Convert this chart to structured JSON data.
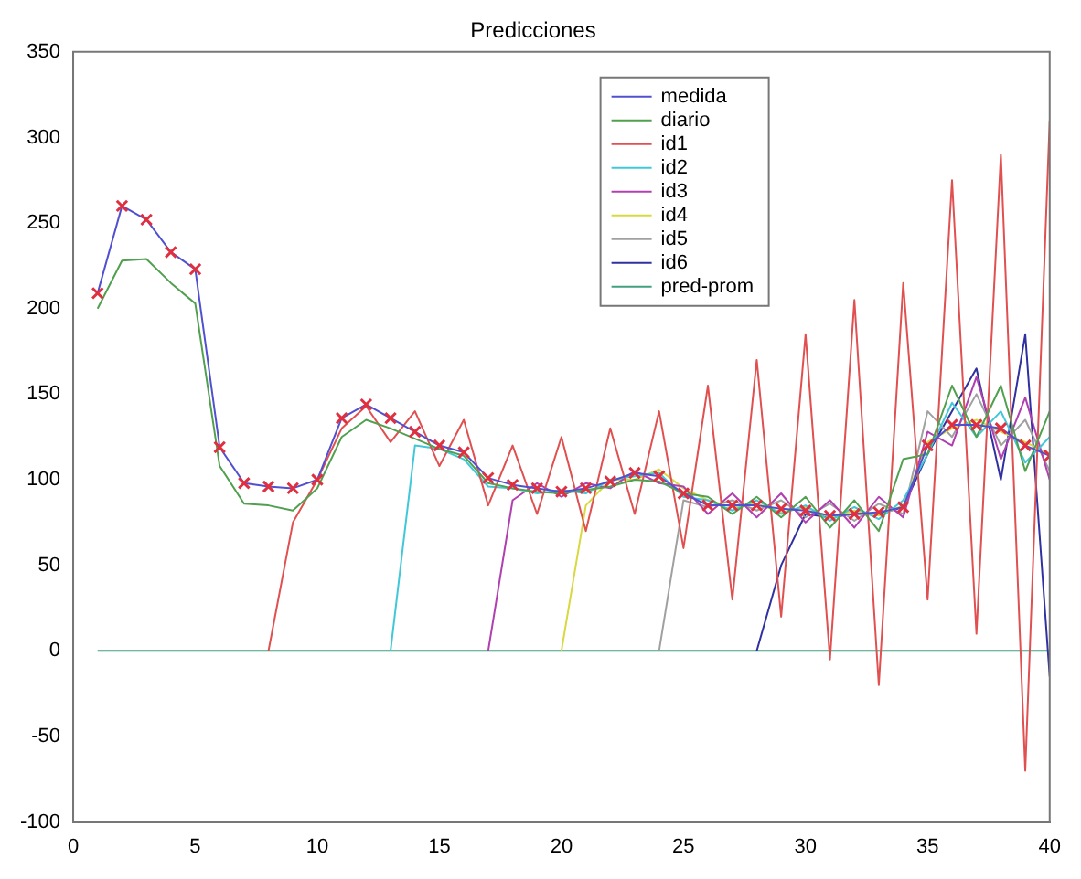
{
  "chart_data": {
    "type": "line",
    "title": "Predicciones",
    "x": [
      1,
      2,
      3,
      4,
      5,
      6,
      7,
      8,
      9,
      10,
      11,
      12,
      13,
      14,
      15,
      16,
      17,
      18,
      19,
      20,
      21,
      22,
      23,
      24,
      25,
      26,
      27,
      28,
      29,
      30,
      31,
      32,
      33,
      34,
      35,
      36,
      37,
      38,
      39,
      40
    ],
    "xlim": [
      0,
      40
    ],
    "xticks": [
      0,
      5,
      10,
      15,
      20,
      25,
      30,
      35,
      40
    ],
    "ylim": [
      -100,
      350
    ],
    "yticks": [
      -100,
      -50,
      0,
      50,
      100,
      150,
      200,
      250,
      300,
      350
    ],
    "grid": false,
    "legend": "top",
    "marker": "none",
    "line_style": "solid",
    "series": [
      {
        "name": "medida",
        "color": "#5050d0",
        "values": [
          209,
          260,
          252,
          233,
          223,
          119,
          98,
          96,
          95,
          100,
          136,
          144,
          136,
          128,
          120,
          116,
          101,
          97,
          95,
          93,
          95,
          99,
          104,
          102,
          92,
          85,
          85,
          85,
          83,
          82,
          79,
          80,
          81,
          84,
          120,
          132,
          132,
          130,
          120,
          114
        ]
      },
      {
        "name": "diario",
        "color": "#50a050",
        "values": [
          200,
          228,
          229,
          215,
          203,
          108,
          86,
          85,
          82,
          95,
          125,
          135,
          130,
          124,
          118,
          114,
          98,
          95,
          93,
          92,
          94,
          96,
          100,
          99,
          92,
          90,
          80,
          90,
          78,
          90,
          72,
          88,
          70,
          112,
          115,
          155,
          125,
          155,
          105,
          140
        ]
      },
      {
        "name": "id1",
        "color": "#e05050",
        "values": [
          null,
          null,
          null,
          null,
          null,
          null,
          null,
          0,
          75,
          100,
          130,
          143,
          122,
          140,
          108,
          135,
          85,
          120,
          80,
          125,
          70,
          130,
          80,
          140,
          60,
          155,
          30,
          170,
          20,
          185,
          -5,
          205,
          -20,
          215,
          30,
          275,
          10,
          290,
          -70,
          310
        ]
      },
      {
        "name": "id2",
        "color": "#40c8d8",
        "values": [
          null,
          null,
          null,
          null,
          null,
          null,
          null,
          null,
          null,
          null,
          null,
          null,
          0,
          120,
          118,
          112,
          96,
          95,
          92,
          94,
          92,
          100,
          102,
          104,
          90,
          88,
          82,
          88,
          80,
          85,
          76,
          84,
          77,
          88,
          115,
          145,
          125,
          140,
          110,
          125
        ]
      },
      {
        "name": "id3",
        "color": "#b040b0",
        "values": [
          null,
          null,
          null,
          null,
          null,
          null,
          null,
          null,
          null,
          null,
          null,
          null,
          null,
          null,
          null,
          null,
          0,
          88,
          98,
          90,
          98,
          95,
          105,
          98,
          96,
          80,
          92,
          78,
          92,
          75,
          88,
          72,
          90,
          78,
          128,
          120,
          160,
          112,
          148,
          100
        ]
      },
      {
        "name": "id4",
        "color": "#d8d840",
        "values": [
          null,
          null,
          null,
          null,
          null,
          null,
          null,
          null,
          null,
          null,
          null,
          null,
          null,
          null,
          null,
          null,
          null,
          null,
          null,
          0,
          85,
          100,
          100,
          106,
          95,
          88,
          84,
          86,
          81,
          84,
          78,
          82,
          79,
          85,
          122,
          130,
          135,
          128,
          122,
          115
        ]
      },
      {
        "name": "id5",
        "color": "#a0a0a0",
        "values": [
          null,
          null,
          null,
          null,
          null,
          null,
          null,
          null,
          null,
          null,
          null,
          null,
          null,
          null,
          null,
          null,
          null,
          null,
          null,
          null,
          null,
          null,
          null,
          0,
          88,
          84,
          88,
          82,
          88,
          78,
          86,
          76,
          86,
          80,
          140,
          125,
          150,
          120,
          135,
          105
        ]
      },
      {
        "name": "id6",
        "color": "#3030a0",
        "values": [
          null,
          null,
          null,
          null,
          null,
          null,
          null,
          null,
          null,
          null,
          null,
          null,
          null,
          null,
          null,
          null,
          null,
          null,
          null,
          null,
          null,
          null,
          null,
          null,
          null,
          null,
          null,
          0,
          50,
          80,
          78,
          80,
          80,
          84,
          115,
          140,
          165,
          100,
          185,
          -15
        ]
      },
      {
        "name": "pred-prom",
        "color": "#40a080",
        "values": [
          0,
          0,
          0,
          0,
          0,
          0,
          0,
          0,
          0,
          0,
          0,
          0,
          0,
          0,
          0,
          0,
          0,
          0,
          0,
          0,
          0,
          0,
          0,
          0,
          0,
          0,
          0,
          0,
          0,
          0,
          0,
          0,
          0,
          0,
          0,
          0,
          0,
          0,
          0,
          0
        ]
      },
      {
        "type": "scatter",
        "color": "#e03040",
        "marker": "cross",
        "values": [
          209,
          260,
          252,
          233,
          223,
          119,
          98,
          96,
          95,
          100,
          136,
          144,
          136,
          128,
          120,
          116,
          101,
          97,
          95,
          93,
          95,
          99,
          104,
          102,
          92,
          85,
          85,
          85,
          83,
          82,
          79,
          80,
          81,
          84,
          120,
          132,
          132,
          130,
          120,
          114
        ]
      }
    ]
  }
}
